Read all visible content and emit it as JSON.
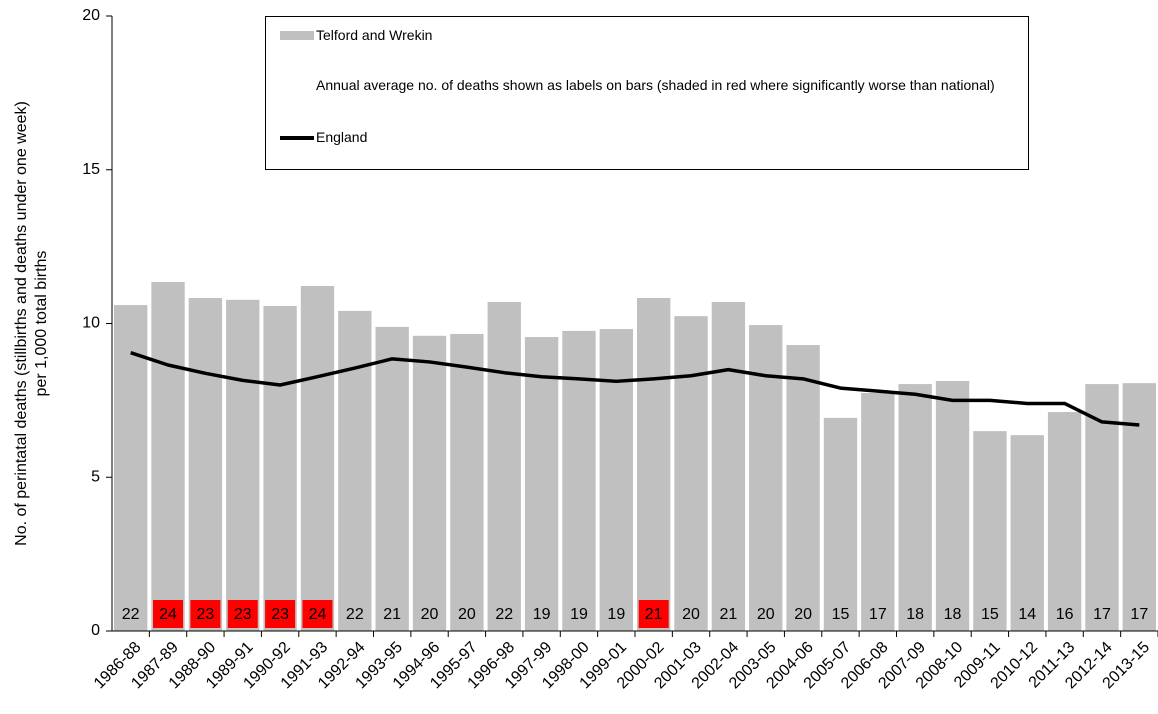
{
  "chart_data": {
    "type": "bar_line",
    "ylabel": [
      "No. of perintatal deaths (stillbirths and deaths under one week)",
      "per 1,000 total births"
    ],
    "note": "Annual average no. of deaths shown as labels on bars (shaded in red where significantly worse than national)",
    "categories": [
      "1986-88",
      "1987-89",
      "1988-90",
      "1989-91",
      "1990-92",
      "1991-93",
      "1992-94",
      "1993-95",
      "1994-96",
      "1995-97",
      "1996-98",
      "1997-99",
      "1998-00",
      "1999-01",
      "2000-02",
      "2001-03",
      "2002-04",
      "2003-05",
      "2004-06",
      "2005-07",
      "2006-08",
      "2007-09",
      "2008-10",
      "2009-11",
      "2010-12",
      "2011-13",
      "2012-14",
      "2013-15"
    ],
    "series": [
      {
        "name": "Telford and Wrekin",
        "type": "bar",
        "color": "#c0c0c0",
        "values": [
          10.6,
          11.35,
          10.83,
          10.77,
          10.57,
          11.22,
          10.41,
          9.89,
          9.6,
          9.66,
          10.7,
          9.56,
          9.76,
          9.82,
          10.83,
          10.24,
          10.7,
          9.95,
          9.3,
          6.93,
          7.74,
          8.03,
          8.13,
          6.5,
          6.37,
          7.12,
          8.03,
          8.06
        ],
        "deaths_labels": [
          22,
          24,
          23,
          23,
          23,
          24,
          22,
          21,
          20,
          20,
          22,
          19,
          19,
          19,
          21,
          20,
          21,
          20,
          20,
          15,
          17,
          18,
          18,
          15,
          14,
          16,
          17,
          17
        ],
        "significantly_worse": [
          false,
          true,
          true,
          true,
          true,
          true,
          false,
          false,
          false,
          false,
          false,
          false,
          false,
          false,
          true,
          false,
          false,
          false,
          false,
          false,
          false,
          false,
          false,
          false,
          false,
          false,
          false,
          false
        ],
        "highlight_color": "#ff0000"
      },
      {
        "name": "England",
        "type": "line",
        "color": "#000000",
        "values": [
          9.05,
          8.65,
          8.38,
          8.15,
          8.0,
          8.27,
          8.55,
          8.85,
          8.75,
          8.58,
          8.4,
          8.27,
          8.2,
          8.12,
          8.2,
          8.3,
          8.5,
          8.3,
          8.2,
          7.9,
          7.8,
          7.7,
          7.5,
          7.5,
          7.4,
          7.4,
          6.8,
          6.7
        ]
      }
    ],
    "ylim": [
      0,
      20
    ],
    "yticks": [
      0,
      5,
      10,
      15,
      20
    ]
  }
}
